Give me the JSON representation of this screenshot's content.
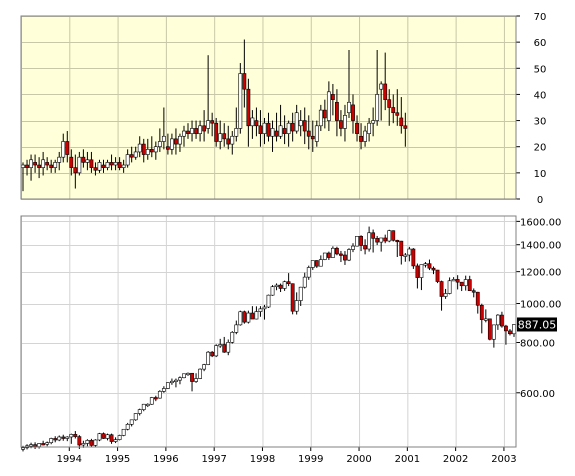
{
  "chart_data": [
    {
      "type": "candlestick",
      "title": "",
      "xlabel": "",
      "ylabel": "",
      "y_axis_side": "right",
      "background": "#ffffd9",
      "ylim": [
        0,
        70
      ],
      "yticks": [
        0,
        10,
        20,
        30,
        40,
        50,
        60,
        70
      ],
      "grid": true,
      "up_color": "#ffffff",
      "down_color": "#cc0000",
      "start": "1993-01",
      "months": [
        [
          12,
          14,
          3,
          13
        ],
        [
          13,
          15,
          9,
          12
        ],
        [
          12,
          17,
          7,
          15
        ],
        [
          14,
          17,
          10,
          13
        ],
        [
          13,
          16,
          8,
          12
        ],
        [
          12,
          18,
          9,
          15
        ],
        [
          14,
          16,
          11,
          13
        ],
        [
          13,
          15,
          10,
          12
        ],
        [
          12,
          15,
          10,
          14
        ],
        [
          14,
          18,
          11,
          16
        ],
        [
          16,
          25,
          14,
          22
        ],
        [
          22,
          26,
          14,
          17
        ],
        [
          16,
          19,
          9,
          12
        ],
        [
          12,
          17,
          4,
          10
        ],
        [
          10,
          18,
          9,
          16
        ],
        [
          16,
          19,
          12,
          14
        ],
        [
          14,
          18,
          11,
          15
        ],
        [
          15,
          18,
          10,
          12
        ],
        [
          12,
          14,
          9,
          11
        ],
        [
          11,
          15,
          10,
          14
        ],
        [
          13,
          15,
          10,
          12
        ],
        [
          12,
          15,
          11,
          14
        ],
        [
          14,
          17,
          11,
          13
        ],
        [
          13,
          16,
          11,
          14
        ],
        [
          14,
          16,
          11,
          12
        ],
        [
          12,
          15,
          10,
          13
        ],
        [
          13,
          19,
          12,
          17
        ],
        [
          17,
          20,
          14,
          16
        ],
        [
          16,
          20,
          15,
          18
        ],
        [
          18,
          24,
          16,
          21
        ],
        [
          21,
          23,
          14,
          17
        ],
        [
          17,
          23,
          15,
          19
        ],
        [
          19,
          24,
          16,
          18
        ],
        [
          18,
          22,
          15,
          20
        ],
        [
          20,
          27,
          18,
          22
        ],
        [
          22,
          35,
          19,
          24
        ],
        [
          20,
          25,
          17,
          19
        ],
        [
          19,
          25,
          17,
          23
        ],
        [
          23,
          27,
          17,
          21
        ],
        [
          21,
          25,
          18,
          24
        ],
        [
          24,
          28,
          20,
          26
        ],
        [
          26,
          29,
          23,
          25
        ],
        [
          25,
          30,
          22,
          27
        ],
        [
          27,
          30,
          23,
          25
        ],
        [
          25,
          30,
          22,
          28
        ],
        [
          28,
          34,
          22,
          26
        ],
        [
          27,
          55,
          25,
          30
        ],
        [
          30,
          33,
          24,
          29
        ],
        [
          29,
          31,
          20,
          22
        ],
        [
          22,
          30,
          19,
          25
        ],
        [
          25,
          29,
          20,
          23
        ],
        [
          23,
          28,
          19,
          21
        ],
        [
          21,
          26,
          17,
          24
        ],
        [
          24,
          35,
          22,
          27
        ],
        [
          27,
          52,
          25,
          48
        ],
        [
          48,
          61,
          35,
          42
        ],
        [
          42,
          46,
          20,
          28
        ],
        [
          28,
          34,
          23,
          31
        ],
        [
          30,
          35,
          24,
          28
        ],
        [
          28,
          34,
          20,
          25
        ],
        [
          25,
          31,
          21,
          29
        ],
        [
          29,
          33,
          22,
          24
        ],
        [
          24,
          30,
          18,
          27
        ],
        [
          26,
          33,
          22,
          24
        ],
        [
          24,
          36,
          23,
          28
        ],
        [
          27,
          32,
          21,
          25
        ],
        [
          25,
          30,
          20,
          29
        ],
        [
          29,
          33,
          22,
          26
        ],
        [
          26,
          36,
          25,
          33
        ],
        [
          28,
          34,
          24,
          30
        ],
        [
          30,
          35,
          21,
          26
        ],
        [
          26,
          32,
          19,
          24
        ],
        [
          24,
          30,
          18,
          23
        ],
        [
          22,
          30,
          20,
          28
        ],
        [
          28,
          36,
          26,
          34
        ],
        [
          34,
          38,
          27,
          31
        ],
        [
          30,
          45,
          26,
          41
        ],
        [
          40,
          44,
          32,
          38
        ],
        [
          37,
          42,
          24,
          30
        ],
        [
          30,
          34,
          24,
          27
        ],
        [
          27,
          36,
          22,
          32
        ],
        [
          33,
          57,
          31,
          37
        ],
        [
          36,
          40,
          25,
          30
        ],
        [
          29,
          32,
          22,
          25
        ],
        [
          24,
          29,
          19,
          22
        ],
        [
          22,
          28,
          20,
          26
        ],
        [
          25,
          31,
          22,
          29
        ],
        [
          29,
          35,
          24,
          30
        ],
        [
          30,
          57,
          28,
          40
        ],
        [
          42,
          45,
          30,
          44
        ],
        [
          44,
          56,
          34,
          38
        ],
        [
          38,
          42,
          28,
          35
        ],
        [
          35,
          40,
          29,
          33
        ],
        [
          33,
          42,
          28,
          32
        ],
        [
          31,
          39,
          25,
          28
        ],
        [
          28,
          33,
          20,
          27
        ]
      ]
    },
    {
      "type": "candlestick",
      "title": "",
      "xlabel": "",
      "ylabel": "",
      "y_axis_side": "right",
      "y_scale": "log",
      "ylim": [
        440,
        1650
      ],
      "yticks": [
        600,
        800,
        1000,
        1200,
        1400,
        1600
      ],
      "ytick_labels": [
        "600.00",
        "800.00",
        "1000.00",
        "1200.00",
        "1400.00",
        "1600.00"
      ],
      "xtick_labels": [
        "1994",
        "1995",
        "1996",
        "1997",
        "1998",
        "1999",
        "2000",
        "2001",
        "2002",
        "2003"
      ],
      "grid": true,
      "up_color": "#ffffff",
      "down_color": "#cc0000",
      "last_value_label": "887.05",
      "start": "1993-01",
      "months": [
        [
          435,
          443,
          429,
          438
        ],
        [
          438,
          447,
          434,
          443
        ],
        [
          443,
          451,
          437,
          446
        ],
        [
          446,
          452,
          435,
          441
        ],
        [
          441,
          450,
          436,
          449
        ],
        [
          449,
          456,
          444,
          447
        ],
        [
          447,
          454,
          442,
          451
        ],
        [
          451,
          464,
          447,
          462
        ],
        [
          462,
          468,
          452,
          458
        ],
        [
          458,
          470,
          455,
          466
        ],
        [
          466,
          472,
          456,
          462
        ],
        [
          462,
          468,
          455,
          466
        ],
        [
          466,
          475,
          448,
          473
        ],
        [
          473,
          482,
          462,
          467
        ],
        [
          467,
          471,
          435,
          445
        ],
        [
          445,
          456,
          438,
          449
        ],
        [
          449,
          460,
          442,
          457
        ],
        [
          457,
          461,
          440,
          444
        ],
        [
          444,
          460,
          441,
          458
        ],
        [
          458,
          477,
          455,
          475
        ],
        [
          475,
          478,
          461,
          462
        ],
        [
          462,
          475,
          457,
          472
        ],
        [
          472,
          475,
          448,
          454
        ],
        [
          454,
          465,
          450,
          459
        ],
        [
          459,
          472,
          457,
          470
        ],
        [
          470,
          486,
          468,
          487
        ],
        [
          487,
          505,
          484,
          501
        ],
        [
          501,
          515,
          495,
          514
        ],
        [
          514,
          534,
          511,
          533
        ],
        [
          533,
          548,
          527,
          545
        ],
        [
          545,
          563,
          540,
          562
        ],
        [
          562,
          565,
          553,
          562
        ],
        [
          562,
          586,
          560,
          584
        ],
        [
          584,
          590,
          572,
          582
        ],
        [
          582,
          609,
          580,
          605
        ],
        [
          605,
          623,
          600,
          615
        ],
        [
          615,
          637,
          613,
          636
        ],
        [
          636,
          651,
          628,
          641
        ],
        [
          641,
          651,
          619,
          645
        ],
        [
          645,
          659,
          630,
          654
        ],
        [
          654,
          670,
          652,
          669
        ],
        [
          669,
          674,
          661,
          671
        ],
        [
          671,
          672,
          605,
          640
        ],
        [
          640,
          671,
          635,
          651
        ],
        [
          651,
          690,
          649,
          687
        ],
        [
          687,
          708,
          679,
          705
        ],
        [
          705,
          762,
          703,
          757
        ],
        [
          757,
          762,
          736,
          741
        ],
        [
          741,
          792,
          736,
          786
        ],
        [
          786,
          817,
          776,
          791
        ],
        [
          791,
          826,
          754,
          757
        ],
        [
          757,
          814,
          744,
          801
        ],
        [
          801,
          854,
          795,
          848
        ],
        [
          848,
          907,
          839,
          885
        ],
        [
          885,
          960,
          881,
          954
        ],
        [
          954,
          960,
          891,
          899
        ],
        [
          899,
          960,
          892,
          947
        ],
        [
          947,
          985,
          919,
          915
        ],
        [
          915,
          984,
          913,
          955
        ],
        [
          955,
          985,
          927,
          970
        ],
        [
          970,
          992,
          912,
          980
        ],
        [
          980,
          1052,
          975,
          1049
        ],
        [
          1049,
          1111,
          1045,
          1101
        ],
        [
          1101,
          1122,
          1079,
          1111
        ],
        [
          1111,
          1121,
          1068,
          1090
        ],
        [
          1090,
          1140,
          1075,
          1133
        ],
        [
          1133,
          1190,
          1105,
          1120
        ],
        [
          1120,
          1122,
          940,
          957
        ],
        [
          957,
          1066,
          939,
          1017
        ],
        [
          1017,
          1100,
          986,
          1098
        ],
        [
          1098,
          1193,
          1090,
          1163
        ],
        [
          1163,
          1242,
          1145,
          1229
        ],
        [
          1229,
          1265,
          1212,
          1279
        ],
        [
          1279,
          1281,
          1226,
          1238
        ],
        [
          1238,
          1317,
          1236,
          1286
        ],
        [
          1286,
          1336,
          1282,
          1335
        ],
        [
          1335,
          1346,
          1283,
          1301
        ],
        [
          1301,
          1387,
          1300,
          1372
        ],
        [
          1372,
          1384,
          1318,
          1328
        ],
        [
          1328,
          1351,
          1268,
          1320
        ],
        [
          1320,
          1350,
          1247,
          1282
        ],
        [
          1282,
          1372,
          1275,
          1362
        ],
        [
          1362,
          1412,
          1342,
          1389
        ],
        [
          1389,
          1470,
          1385,
          1469
        ],
        [
          1469,
          1478,
          1350,
          1394
        ],
        [
          1394,
          1444,
          1325,
          1366
        ],
        [
          1366,
          1553,
          1346,
          1499
        ],
        [
          1499,
          1527,
          1339,
          1452
        ],
        [
          1452,
          1472,
          1397,
          1421
        ],
        [
          1421,
          1454,
          1346,
          1455
        ],
        [
          1455,
          1483,
          1412,
          1430
        ],
        [
          1430,
          1525,
          1420,
          1517
        ],
        [
          1517,
          1520,
          1426,
          1436
        ],
        [
          1436,
          1440,
          1305,
          1429
        ],
        [
          1429,
          1431,
          1250,
          1315
        ],
        [
          1315,
          1335,
          1270,
          1320
        ],
        [
          1320,
          1383,
          1273,
          1366
        ],
        [
          1366,
          1373,
          1219,
          1240
        ],
        [
          1240,
          1257,
          1090,
          1160
        ],
        [
          1160,
          1183,
          1080,
          1249
        ],
        [
          1249,
          1268,
          1229,
          1256
        ],
        [
          1256,
          1286,
          1211,
          1224
        ],
        [
          1224,
          1236,
          1183,
          1211
        ],
        [
          1211,
          1212,
          1124,
          1134
        ],
        [
          1134,
          1140,
          960,
          1041
        ],
        [
          1041,
          1087,
          1027,
          1059
        ],
        [
          1059,
          1161,
          1054,
          1139
        ],
        [
          1139,
          1163,
          1137,
          1148
        ],
        [
          1148,
          1176,
          1084,
          1130
        ],
        [
          1130,
          1130,
          1074,
          1107
        ],
        [
          1107,
          1173,
          1077,
          1147
        ],
        [
          1147,
          1172,
          1130,
          1076
        ],
        [
          1076,
          1090,
          1036,
          1067
        ],
        [
          1067,
          1069,
          944,
          990
        ],
        [
          990,
          999,
          843,
          912
        ],
        [
          912,
          967,
          898,
          916
        ],
        [
          916,
          903,
          810,
          815
        ],
        [
          815,
          838,
          777,
          885
        ],
        [
          885,
          941,
          860,
          936
        ],
        [
          936,
          954,
          871,
          879
        ],
        [
          879,
          885,
          790,
          855
        ],
        [
          855,
          864,
          833,
          841
        ],
        [
          841,
          889,
          826,
          887
        ]
      ]
    }
  ]
}
